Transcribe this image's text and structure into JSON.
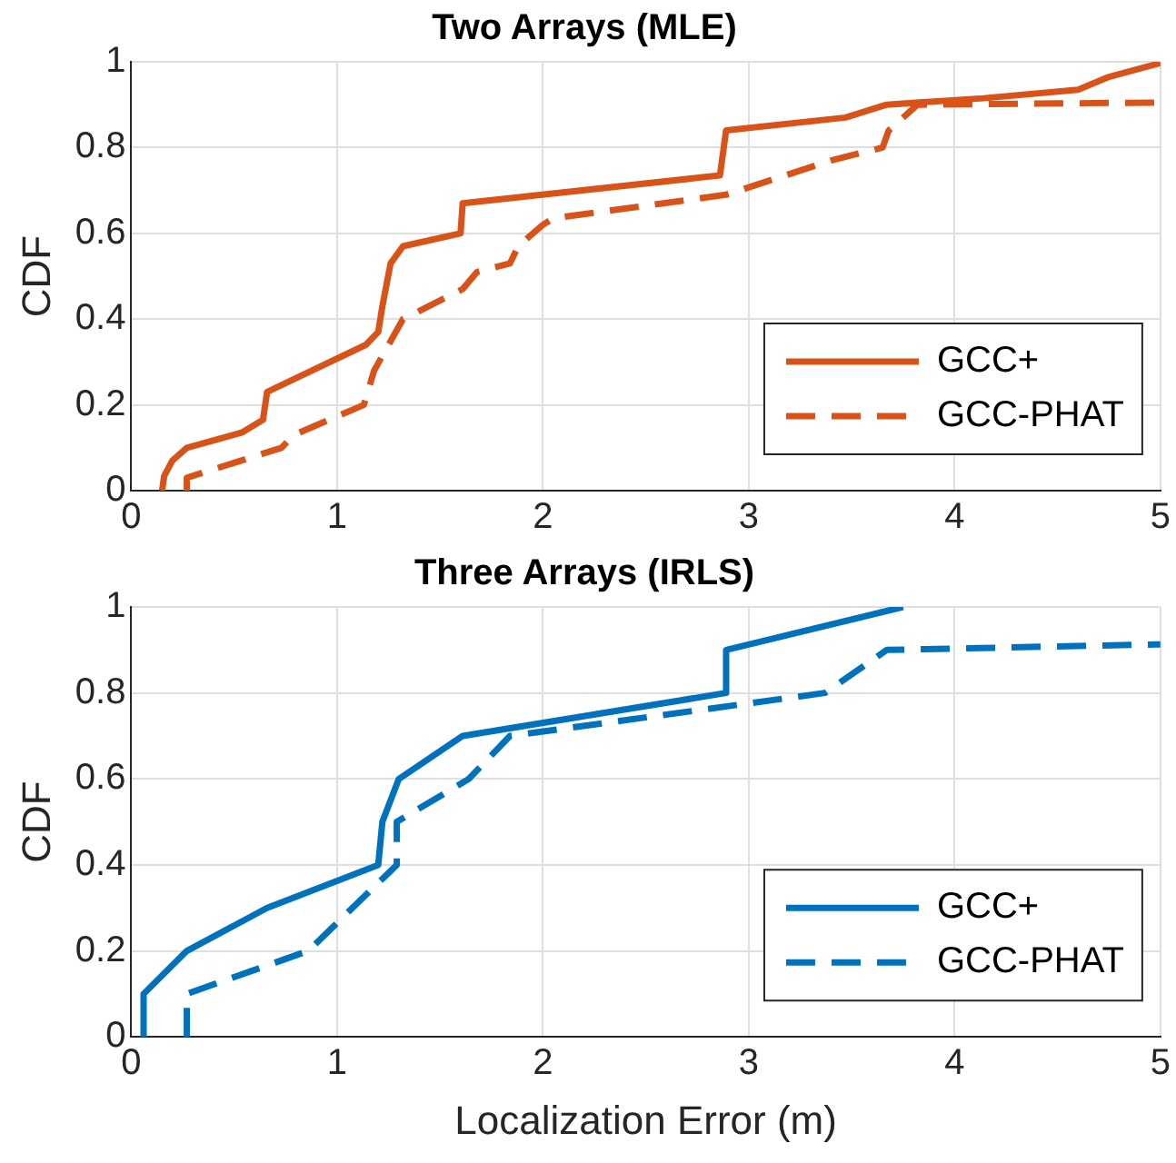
{
  "chart_data": [
    {
      "type": "line",
      "title": "Two Arrays (MLE)",
      "ylabel": "CDF",
      "xlim": [
        0,
        5
      ],
      "ylim": [
        0,
        1
      ],
      "xticks": [
        0,
        1,
        2,
        3,
        4,
        5
      ],
      "yticks": [
        0,
        0.2,
        0.4,
        0.6,
        0.8,
        1
      ],
      "grid": true,
      "legend": "bottom right",
      "marker": "none",
      "series": [
        {
          "name": "GCC+",
          "color": "#d95319",
          "line_style": "solid",
          "x": [
            0.15,
            0.16,
            0.2,
            0.27,
            0.54,
            0.64,
            0.66,
            1.14,
            1.2,
            1.22,
            1.26,
            1.32,
            1.6,
            1.61,
            2.86,
            2.89,
            3.47,
            3.67,
            4.14,
            4.6,
            4.75,
            5
          ],
          "values": [
            0,
            0.034,
            0.07,
            0.1,
            0.136,
            0.165,
            0.23,
            0.34,
            0.37,
            0.43,
            0.53,
            0.57,
            0.6,
            0.67,
            0.735,
            0.84,
            0.87,
            0.9,
            0.915,
            0.935,
            0.965,
            0.997
          ]
        },
        {
          "name": "GCC-PHAT",
          "color": "#d95319",
          "line_style": "dashed",
          "x": [
            0.27,
            0.27,
            0.73,
            0.79,
            1.13,
            1.18,
            1.32,
            1.61,
            1.68,
            1.84,
            1.88,
            2.0,
            2.05,
            2.89,
            3.4,
            3.65,
            3.68,
            3.82,
            5
          ],
          "values": [
            0,
            0.03,
            0.1,
            0.13,
            0.2,
            0.28,
            0.4,
            0.47,
            0.51,
            0.53,
            0.57,
            0.62,
            0.635,
            0.69,
            0.77,
            0.8,
            0.84,
            0.9,
            0.905
          ]
        }
      ]
    },
    {
      "type": "line",
      "title": "Three Arrays (IRLS)",
      "ylabel": "CDF",
      "xlabel": "Localization Error (m)",
      "xlim": [
        0,
        5
      ],
      "ylim": [
        0,
        1
      ],
      "xticks": [
        0,
        1,
        2,
        3,
        4,
        5
      ],
      "yticks": [
        0,
        0.2,
        0.4,
        0.6,
        0.8,
        1
      ],
      "grid": true,
      "legend": "bottom right",
      "marker": "none",
      "series": [
        {
          "name": "GCC+",
          "color": "#0072bd",
          "line_style": "solid",
          "x": [
            0.06,
            0.06,
            0.27,
            0.66,
            1.2,
            1.22,
            1.3,
            1.61,
            2.89,
            2.89,
            3.75
          ],
          "values": [
            0,
            0.1,
            0.2,
            0.3,
            0.4,
            0.5,
            0.6,
            0.7,
            0.8,
            0.9,
            1.0
          ]
        },
        {
          "name": "GCC-PHAT",
          "color": "#0072bd",
          "line_style": "dashed",
          "x": [
            0.27,
            0.27,
            0.86,
            1.29,
            1.29,
            1.29,
            1.64,
            1.84,
            3.37,
            3.67,
            5
          ],
          "values": [
            0,
            0.1,
            0.2,
            0.4,
            0.42,
            0.5,
            0.6,
            0.7,
            0.8,
            0.9,
            0.913
          ]
        }
      ]
    }
  ]
}
